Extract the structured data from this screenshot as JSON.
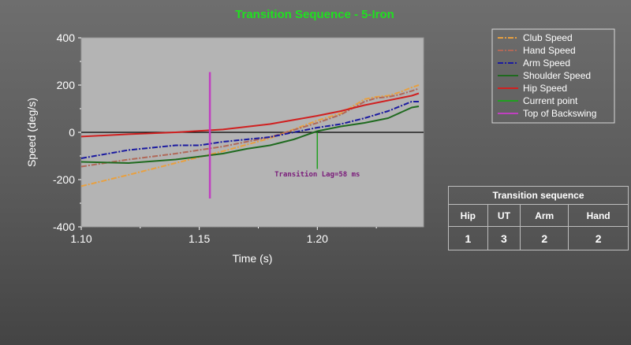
{
  "chart_data": {
    "type": "line",
    "title": "Transition Sequence - 5-Iron",
    "xlabel": "Time (s)",
    "ylabel": "Speed (deg/s)",
    "xlim": [
      1.1,
      1.245
    ],
    "ylim": [
      -400,
      400
    ],
    "x_ticks": [
      1.1,
      1.15,
      1.2
    ],
    "x_tick_labels": [
      "1.10",
      "1.15",
      "1.20"
    ],
    "y_ticks": [
      -400,
      -200,
      0,
      200,
      400
    ],
    "y_tick_labels": [
      "-400",
      "-200",
      "0",
      "200",
      "400"
    ],
    "grid": false,
    "legend_position": "top-right",
    "series": [
      {
        "name": "Club Speed",
        "color": "#e8a040",
        "dash": "dashdot",
        "x": [
          1.1,
          1.12,
          1.14,
          1.16,
          1.18,
          1.2,
          1.21,
          1.22,
          1.225,
          1.23,
          1.235,
          1.24,
          1.243
        ],
        "y": [
          -228,
          -180,
          -130,
          -80,
          -25,
          50,
          80,
          140,
          150,
          155,
          170,
          190,
          200
        ]
      },
      {
        "name": "Hand Speed",
        "color": "#b06858",
        "dash": "dashdot",
        "x": [
          1.1,
          1.12,
          1.14,
          1.16,
          1.18,
          1.2,
          1.21,
          1.22,
          1.225,
          1.23,
          1.235,
          1.24,
          1.243
        ],
        "y": [
          -145,
          -115,
          -90,
          -60,
          -20,
          40,
          75,
          130,
          145,
          150,
          160,
          175,
          185
        ]
      },
      {
        "name": "Arm Speed",
        "color": "#1a1aa0",
        "dash": "dashdot",
        "x": [
          1.1,
          1.12,
          1.14,
          1.15,
          1.16,
          1.18,
          1.2,
          1.21,
          1.22,
          1.23,
          1.24,
          1.243
        ],
        "y": [
          -110,
          -75,
          -55,
          -55,
          -40,
          -20,
          20,
          35,
          60,
          90,
          130,
          130
        ]
      },
      {
        "name": "Shoulder Speed",
        "color": "#1f6a1f",
        "dash": "solid",
        "x": [
          1.1,
          1.12,
          1.14,
          1.16,
          1.17,
          1.18,
          1.19,
          1.2,
          1.21,
          1.22,
          1.23,
          1.24,
          1.243
        ],
        "y": [
          -125,
          -130,
          -115,
          -90,
          -70,
          -55,
          -30,
          5,
          25,
          40,
          60,
          105,
          110
        ]
      },
      {
        "name": "Hip Speed",
        "color": "#d02020",
        "dash": "solid",
        "x": [
          1.1,
          1.12,
          1.14,
          1.16,
          1.18,
          1.2,
          1.21,
          1.22,
          1.23,
          1.24,
          1.243
        ],
        "y": [
          -18,
          -8,
          0,
          12,
          35,
          70,
          90,
          115,
          135,
          155,
          165
        ]
      },
      {
        "name": "Current point",
        "color": "#20a020",
        "dash": "solid",
        "x": [
          1.2,
          1.2
        ],
        "y": [
          0,
          -155
        ]
      },
      {
        "name": "Top of Backswing",
        "color": "#c040c0",
        "dash": "solid",
        "x": [
          1.1545,
          1.1545
        ],
        "y": [
          255,
          -280
        ]
      }
    ],
    "annotations": [
      {
        "text": "Transition Lag=58 ms",
        "x": 1.2,
        "y": -170,
        "color": "#7a1a7a"
      }
    ],
    "title_color": "#20e020",
    "plot_background": "#b4b4b4"
  },
  "table": {
    "title": "Transition sequence",
    "headers": [
      "Hip",
      "UT",
      "Arm",
      "Hand"
    ],
    "values": [
      "1",
      "3",
      "2",
      "2"
    ]
  }
}
